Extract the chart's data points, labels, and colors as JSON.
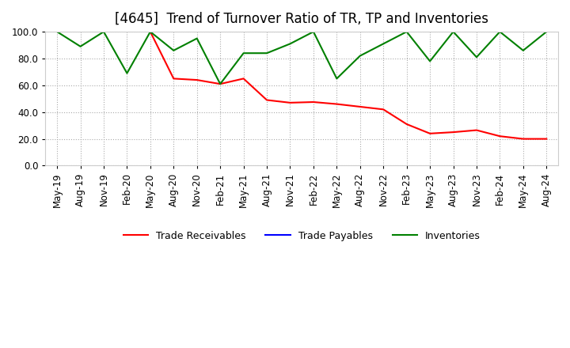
{
  "title": "[4645]  Trend of Turnover Ratio of TR, TP and Inventories",
  "ylim": [
    0.0,
    100.0
  ],
  "yticks": [
    0.0,
    20.0,
    40.0,
    60.0,
    80.0,
    100.0
  ],
  "x_labels": [
    "May-19",
    "Aug-19",
    "Nov-19",
    "Feb-20",
    "May-20",
    "Aug-20",
    "Nov-20",
    "Feb-21",
    "May-21",
    "Aug-21",
    "Nov-21",
    "Feb-22",
    "May-22",
    "Aug-22",
    "Nov-22",
    "Feb-23",
    "May-23",
    "Aug-23",
    "Nov-23",
    "Feb-24",
    "May-24",
    "Aug-24"
  ],
  "trade_receivables": [
    null,
    null,
    null,
    null,
    100.0,
    65.0,
    64.0,
    61.0,
    65.0,
    49.0,
    47.0,
    47.5,
    46.0,
    44.0,
    42.0,
    31.0,
    24.0,
    25.0,
    26.5,
    22.0,
    20.0,
    20.0
  ],
  "trade_payables": [
    null,
    null,
    null,
    null,
    null,
    null,
    null,
    null,
    null,
    null,
    null,
    null,
    null,
    null,
    null,
    null,
    null,
    null,
    null,
    null,
    null,
    null
  ],
  "inventories": [
    100.0,
    89.0,
    100.0,
    69.0,
    100.0,
    86.0,
    95.0,
    61.0,
    84.0,
    84.0,
    91.0,
    100.0,
    65.0,
    82.0,
    91.0,
    100.0,
    78.0,
    100.0,
    81.0,
    100.0,
    86.0,
    100.0
  ],
  "color_tr": "#ff0000",
  "color_tp": "#0000ff",
  "color_inv": "#008000",
  "background_color": "#ffffff",
  "legend_labels": [
    "Trade Receivables",
    "Trade Payables",
    "Inventories"
  ],
  "title_fontsize": 12,
  "axis_fontsize": 8.5
}
